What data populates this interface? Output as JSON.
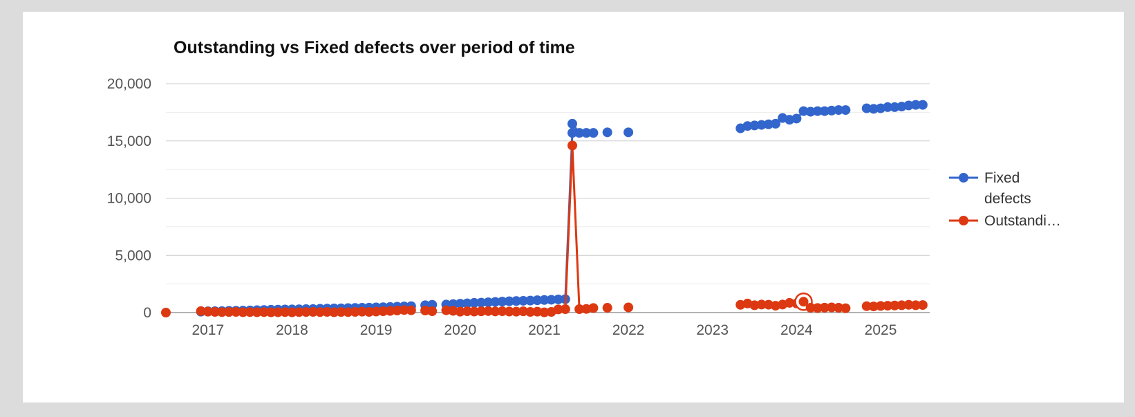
{
  "chart_data": {
    "type": "line",
    "title": "Outstanding vs Fixed defects over period of time",
    "xlabel": "",
    "ylabel": "",
    "ylim": [
      0,
      20000
    ],
    "xlim": [
      "2016-07-01",
      "2025-08-01"
    ],
    "yticks": [
      "0",
      "5,000",
      "10,000",
      "15,000",
      "20,000"
    ],
    "xticks": [
      "2017",
      "2018",
      "2019",
      "2020",
      "2021",
      "2022",
      "2023",
      "2024",
      "2025"
    ],
    "grid": true,
    "legend_position": "right",
    "colors": {
      "fixed": "#3366cc",
      "outstanding": "#dc3912"
    },
    "highlight_point": {
      "series": 1,
      "index": 67
    },
    "series": [
      {
        "name": "Fixed defects",
        "color": "#3366cc",
        "points": [
          [
            "2016-12",
            80
          ],
          [
            "2017-01",
            110
          ],
          [
            "2017-02",
            120
          ],
          [
            "2017-03",
            130
          ],
          [
            "2017-04",
            150
          ],
          [
            "2017-05",
            160
          ],
          [
            "2017-06",
            170
          ],
          [
            "2017-07",
            190
          ],
          [
            "2017-08",
            210
          ],
          [
            "2017-09",
            230
          ],
          [
            "2017-10",
            250
          ],
          [
            "2017-11",
            260
          ],
          [
            "2017-12",
            270
          ],
          [
            "2018-01",
            280
          ],
          [
            "2018-02",
            290
          ],
          [
            "2018-03",
            300
          ],
          [
            "2018-04",
            310
          ],
          [
            "2018-05",
            330
          ],
          [
            "2018-06",
            350
          ],
          [
            "2018-07",
            360
          ],
          [
            "2018-08",
            370
          ],
          [
            "2018-09",
            390
          ],
          [
            "2018-10",
            410
          ],
          [
            "2018-11",
            420
          ],
          [
            "2018-12",
            430
          ],
          [
            "2019-01",
            450
          ],
          [
            "2019-02",
            470
          ],
          [
            "2019-03",
            490
          ],
          [
            "2019-04",
            510
          ],
          [
            "2019-05",
            540
          ],
          [
            "2019-06",
            560
          ],
          [
            "2019-08",
            640
          ],
          [
            "2019-09",
            680
          ],
          [
            "2019-11",
            700
          ],
          [
            "2019-12",
            740
          ],
          [
            "2020-01",
            780
          ],
          [
            "2020-02",
            810
          ],
          [
            "2020-03",
            850
          ],
          [
            "2020-04",
            870
          ],
          [
            "2020-05",
            900
          ],
          [
            "2020-06",
            930
          ],
          [
            "2020-07",
            960
          ],
          [
            "2020-08",
            990
          ],
          [
            "2020-09",
            1010
          ],
          [
            "2020-10",
            1030
          ],
          [
            "2020-11",
            1050
          ],
          [
            "2020-12",
            1080
          ],
          [
            "2021-01",
            1100
          ],
          [
            "2021-02",
            1120
          ],
          [
            "2021-03",
            1150
          ],
          [
            "2021-04",
            1170
          ],
          [
            "2021-05",
            15700
          ],
          [
            "2021-05",
            16500
          ],
          [
            "2021-06",
            15700
          ],
          [
            "2021-07",
            15700
          ],
          [
            "2021-08",
            15700
          ],
          [
            "2021-10",
            15750
          ],
          [
            "2022-01",
            15750
          ],
          [
            "2023-05",
            16100
          ],
          [
            "2023-06",
            16300
          ],
          [
            "2023-07",
            16350
          ],
          [
            "2023-08",
            16400
          ],
          [
            "2023-09",
            16450
          ],
          [
            "2023-10",
            16500
          ],
          [
            "2023-11",
            17000
          ],
          [
            "2023-12",
            16850
          ],
          [
            "2024-01",
            16950
          ],
          [
            "2024-02",
            17600
          ],
          [
            "2024-03",
            17550
          ],
          [
            "2024-04",
            17600
          ],
          [
            "2024-05",
            17600
          ],
          [
            "2024-06",
            17650
          ],
          [
            "2024-07",
            17700
          ],
          [
            "2024-08",
            17700
          ],
          [
            "2024-11",
            17850
          ],
          [
            "2024-12",
            17800
          ],
          [
            "2025-01",
            17850
          ],
          [
            "2025-02",
            17950
          ],
          [
            "2025-03",
            17950
          ],
          [
            "2025-04",
            18000
          ],
          [
            "2025-05",
            18100
          ],
          [
            "2025-06",
            18150
          ],
          [
            "2025-07",
            18150
          ]
        ]
      },
      {
        "name": "Outstandi…",
        "color": "#dc3912",
        "points": [
          [
            "2016-07",
            0
          ],
          [
            "2016-12",
            130
          ],
          [
            "2017-01",
            80
          ],
          [
            "2017-02",
            60
          ],
          [
            "2017-03",
            40
          ],
          [
            "2017-04",
            50
          ],
          [
            "2017-05",
            60
          ],
          [
            "2017-06",
            30
          ],
          [
            "2017-07",
            40
          ],
          [
            "2017-08",
            30
          ],
          [
            "2017-09",
            40
          ],
          [
            "2017-10",
            20
          ],
          [
            "2017-11",
            30
          ],
          [
            "2017-12",
            40
          ],
          [
            "2018-01",
            20
          ],
          [
            "2018-02",
            40
          ],
          [
            "2018-03",
            50
          ],
          [
            "2018-04",
            60
          ],
          [
            "2018-05",
            40
          ],
          [
            "2018-06",
            60
          ],
          [
            "2018-07",
            30
          ],
          [
            "2018-08",
            50
          ],
          [
            "2018-09",
            40
          ],
          [
            "2018-10",
            60
          ],
          [
            "2018-11",
            80
          ],
          [
            "2018-12",
            60
          ],
          [
            "2019-01",
            90
          ],
          [
            "2019-02",
            120
          ],
          [
            "2019-03",
            140
          ],
          [
            "2019-04",
            180
          ],
          [
            "2019-05",
            220
          ],
          [
            "2019-06",
            200
          ],
          [
            "2019-08",
            180
          ],
          [
            "2019-09",
            120
          ],
          [
            "2019-11",
            200
          ],
          [
            "2019-12",
            150
          ],
          [
            "2020-01",
            80
          ],
          [
            "2020-02",
            120
          ],
          [
            "2020-03",
            90
          ],
          [
            "2020-04",
            110
          ],
          [
            "2020-05",
            130
          ],
          [
            "2020-06",
            100
          ],
          [
            "2020-07",
            120
          ],
          [
            "2020-08",
            90
          ],
          [
            "2020-09",
            80
          ],
          [
            "2020-10",
            110
          ],
          [
            "2020-11",
            60
          ],
          [
            "2020-12",
            80
          ],
          [
            "2021-01",
            20
          ],
          [
            "2021-02",
            60
          ],
          [
            "2021-03",
            280
          ],
          [
            "2021-04",
            300
          ],
          [
            "2021-05",
            14600
          ],
          [
            "2021-06",
            300
          ],
          [
            "2021-07",
            320
          ],
          [
            "2021-08",
            400
          ],
          [
            "2021-10",
            420
          ],
          [
            "2022-01",
            450
          ],
          [
            "2023-05",
            680
          ],
          [
            "2023-06",
            790
          ],
          [
            "2023-07",
            640
          ],
          [
            "2023-08",
            700
          ],
          [
            "2023-09",
            690
          ],
          [
            "2023-10",
            600
          ],
          [
            "2023-11",
            700
          ],
          [
            "2023-12",
            850
          ],
          [
            "2024-01",
            800
          ],
          [
            "2024-02",
            950
          ],
          [
            "2024-03",
            420
          ],
          [
            "2024-04",
            400
          ],
          [
            "2024-05",
            430
          ],
          [
            "2024-06",
            450
          ],
          [
            "2024-07",
            420
          ],
          [
            "2024-08",
            380
          ],
          [
            "2024-11",
            560
          ],
          [
            "2024-12",
            540
          ],
          [
            "2025-01",
            580
          ],
          [
            "2025-02",
            600
          ],
          [
            "2025-03",
            620
          ],
          [
            "2025-04",
            640
          ],
          [
            "2025-05",
            680
          ],
          [
            "2025-06",
            640
          ],
          [
            "2025-07",
            660
          ]
        ]
      }
    ]
  }
}
